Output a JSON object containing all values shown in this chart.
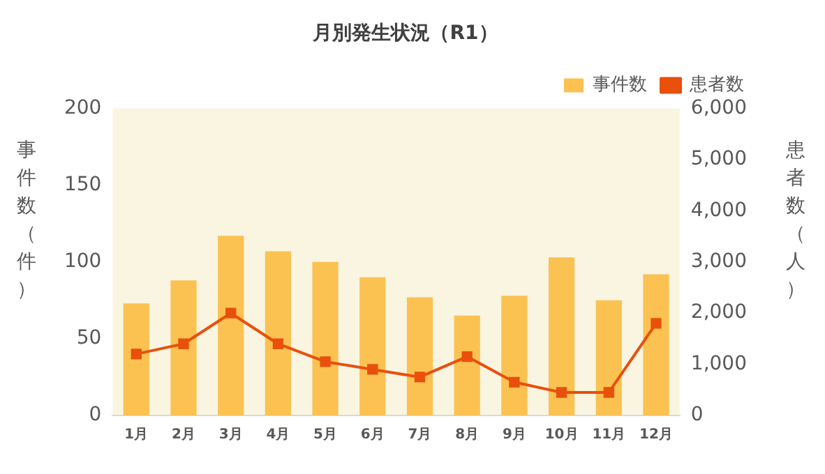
{
  "chart_data": {
    "type": "bar",
    "title": "月別発生状況（R1）",
    "ylabel": "事件数（件）",
    "y2label": "患者数（人）",
    "categories": [
      "1月",
      "2月",
      "3月",
      "4月",
      "5月",
      "6月",
      "7月",
      "8月",
      "9月",
      "10月",
      "11月",
      "12月"
    ],
    "series": [
      {
        "name": "事件数",
        "color": "#fbc252",
        "values": [
          73,
          88,
          117,
          107,
          100,
          90,
          77,
          65,
          78,
          103,
          75,
          92
        ]
      },
      {
        "name": "患者数",
        "type": "line",
        "axis": "y2",
        "color": "#e8500c",
        "marker": "square",
        "values": [
          1200,
          1400,
          2000,
          1400,
          1050,
          900,
          750,
          1150,
          650,
          450,
          450,
          1800
        ]
      }
    ],
    "ylim": [
      0,
      200
    ],
    "yticks": [
      0,
      50,
      100,
      150,
      200
    ],
    "y2lim": [
      0,
      6000
    ],
    "y2ticks": [
      {
        "value": 0,
        "label": "0"
      },
      {
        "value": 1000,
        "label": "1,000"
      },
      {
        "value": 2000,
        "label": "2,000"
      },
      {
        "value": 3000,
        "label": "3,000"
      },
      {
        "value": 4000,
        "label": "4,000"
      },
      {
        "value": 5000,
        "label": "5,000"
      },
      {
        "value": 6000,
        "label": "6,000"
      }
    ],
    "grid": false,
    "legend": "top right"
  }
}
